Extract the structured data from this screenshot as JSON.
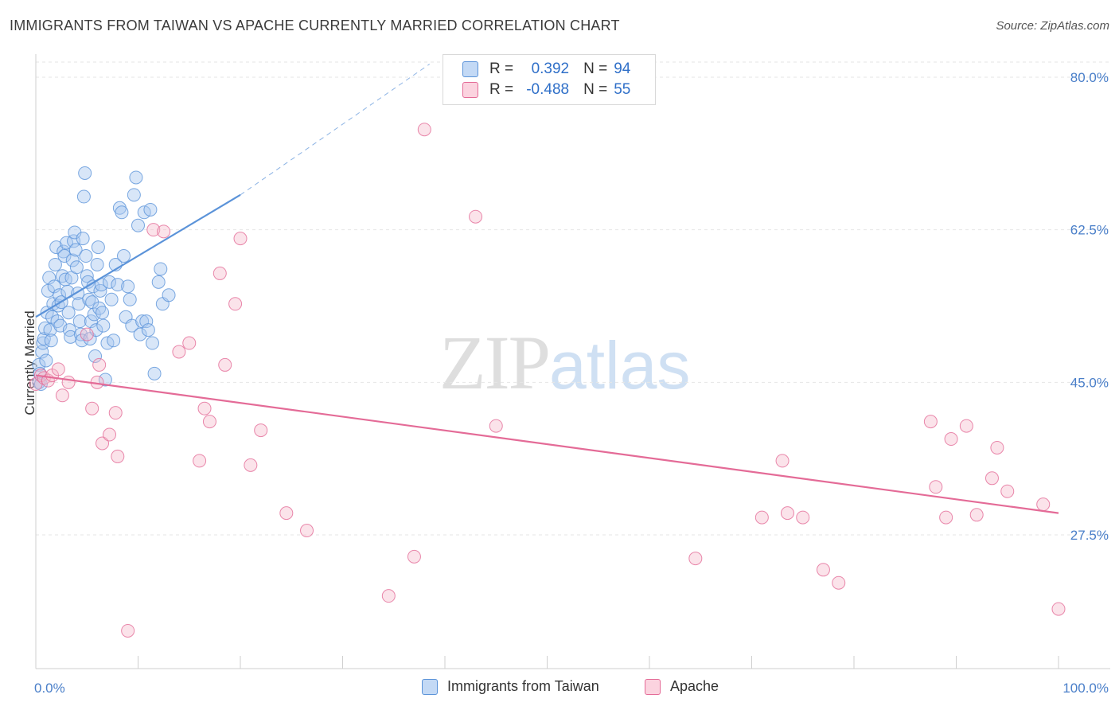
{
  "header": {
    "title": "IMMIGRANTS FROM TAIWAN VS APACHE CURRENTLY MARRIED CORRELATION CHART",
    "source": "Source: ZipAtlas.com"
  },
  "watermark": {
    "zip": "ZIP",
    "atlas": "atlas"
  },
  "legend_top": {
    "rows": [
      {
        "r_label": "R =",
        "r_value": "0.392",
        "n_label": "N =",
        "n_value": "94",
        "color": "#a8c8f0"
      },
      {
        "r_label": "R =",
        "r_value": "-0.488",
        "n_label": "N =",
        "n_value": "55",
        "color": "#f5b8cb"
      }
    ]
  },
  "legend_bottom": {
    "items": [
      {
        "label": "Immigrants from Taiwan",
        "color": "#a8c8f0"
      },
      {
        "label": "Apache",
        "color": "#f5b8cb"
      }
    ]
  },
  "chart_data": {
    "type": "scatter",
    "title": "IMMIGRANTS FROM TAIWAN VS APACHE CURRENTLY MARRIED CORRELATION CHART",
    "xlabel": "",
    "ylabel": "Currently Married",
    "xlim": [
      0,
      100
    ],
    "ylim": [
      10,
      83
    ],
    "y_ticks": [
      {
        "value": 80.0,
        "label": "80.0%"
      },
      {
        "value": 62.5,
        "label": "62.5%"
      },
      {
        "value": 45.0,
        "label": "45.0%"
      },
      {
        "value": 27.5,
        "label": "27.5%"
      }
    ],
    "x_tick_labels": [
      {
        "value": 0,
        "label": "0.0%"
      },
      {
        "value": 100,
        "label": "100.0%"
      }
    ],
    "grid": true,
    "legend_position": "top-center",
    "series": [
      {
        "name": "Immigrants from Taiwan",
        "color": "#5b93d9",
        "fill": "#a8c8f0",
        "R": 0.392,
        "N": 94,
        "trendline": {
          "x": [
            0,
            20
          ],
          "y": [
            52.5,
            66.5
          ],
          "dashed_extension": {
            "x": [
              20,
              38.5
            ],
            "y": [
              66.5,
              81.5
            ]
          }
        },
        "points": [
          [
            0.3,
            47.0
          ],
          [
            0.3,
            45.0
          ],
          [
            0.4,
            46.0
          ],
          [
            0.5,
            44.8
          ],
          [
            0.6,
            48.5
          ],
          [
            0.7,
            49.5
          ],
          [
            0.8,
            50.0
          ],
          [
            0.9,
            51.2
          ],
          [
            1.0,
            47.5
          ],
          [
            1.1,
            53.0
          ],
          [
            1.2,
            55.5
          ],
          [
            1.3,
            57.0
          ],
          [
            1.4,
            51.0
          ],
          [
            1.5,
            49.8
          ],
          [
            1.6,
            52.5
          ],
          [
            1.7,
            54.0
          ],
          [
            1.8,
            56.0
          ],
          [
            1.9,
            58.5
          ],
          [
            2.0,
            60.5
          ],
          [
            2.1,
            52.0
          ],
          [
            2.2,
            53.8
          ],
          [
            2.3,
            55.0
          ],
          [
            2.4,
            51.5
          ],
          [
            2.5,
            54.2
          ],
          [
            2.6,
            57.2
          ],
          [
            2.7,
            60.0
          ],
          [
            2.8,
            59.5
          ],
          [
            2.9,
            56.8
          ],
          [
            3.0,
            61.0
          ],
          [
            3.1,
            55.4
          ],
          [
            3.2,
            53.0
          ],
          [
            3.3,
            51.0
          ],
          [
            3.4,
            50.2
          ],
          [
            3.5,
            57.0
          ],
          [
            3.6,
            59.0
          ],
          [
            3.7,
            61.2
          ],
          [
            3.8,
            62.2
          ],
          [
            3.9,
            60.2
          ],
          [
            4.0,
            58.2
          ],
          [
            4.1,
            55.2
          ],
          [
            4.2,
            54.0
          ],
          [
            4.3,
            52.0
          ],
          [
            4.4,
            50.5
          ],
          [
            4.5,
            49.8
          ],
          [
            4.6,
            61.5
          ],
          [
            4.7,
            66.3
          ],
          [
            4.8,
            69.0
          ],
          [
            4.9,
            59.5
          ],
          [
            5.0,
            57.2
          ],
          [
            5.1,
            56.5
          ],
          [
            5.2,
            54.5
          ],
          [
            5.3,
            50.0
          ],
          [
            5.4,
            52.0
          ],
          [
            5.5,
            54.2
          ],
          [
            5.6,
            56.0
          ],
          [
            5.7,
            52.8
          ],
          [
            5.8,
            48.0
          ],
          [
            5.9,
            51.0
          ],
          [
            6.0,
            58.5
          ],
          [
            6.1,
            60.5
          ],
          [
            6.2,
            53.5
          ],
          [
            6.3,
            55.5
          ],
          [
            6.4,
            56.2
          ],
          [
            6.5,
            53.0
          ],
          [
            6.6,
            51.5
          ],
          [
            6.8,
            45.3
          ],
          [
            7.0,
            49.5
          ],
          [
            7.2,
            56.5
          ],
          [
            7.4,
            54.5
          ],
          [
            7.6,
            49.8
          ],
          [
            7.8,
            58.5
          ],
          [
            8.0,
            56.2
          ],
          [
            8.2,
            65.0
          ],
          [
            8.4,
            64.5
          ],
          [
            8.6,
            59.5
          ],
          [
            8.8,
            52.5
          ],
          [
            9.0,
            56.0
          ],
          [
            9.2,
            54.5
          ],
          [
            9.4,
            51.5
          ],
          [
            9.6,
            66.5
          ],
          [
            9.8,
            68.5
          ],
          [
            10.0,
            63.0
          ],
          [
            10.2,
            50.5
          ],
          [
            10.4,
            52.0
          ],
          [
            10.6,
            64.5
          ],
          [
            10.8,
            52.0
          ],
          [
            11.0,
            51.0
          ],
          [
            11.2,
            64.8
          ],
          [
            11.4,
            49.5
          ],
          [
            11.6,
            46.0
          ],
          [
            12.0,
            56.5
          ],
          [
            12.2,
            58.0
          ],
          [
            12.4,
            54.0
          ],
          [
            13.0,
            55.0
          ]
        ]
      },
      {
        "name": "Apache",
        "color": "#e46b97",
        "fill": "#f5b8cb",
        "R": -0.488,
        "N": 55,
        "trendline": {
          "x": [
            0,
            100
          ],
          "y": [
            45.8,
            30.0
          ]
        },
        "points": [
          [
            0.0,
            44.8
          ],
          [
            0.5,
            45.8
          ],
          [
            0.8,
            45.5
          ],
          [
            1.2,
            45.2
          ],
          [
            1.6,
            45.8
          ],
          [
            2.2,
            46.5
          ],
          [
            2.6,
            43.5
          ],
          [
            3.2,
            45.0
          ],
          [
            5.0,
            50.5
          ],
          [
            5.5,
            42.0
          ],
          [
            6.0,
            45.0
          ],
          [
            6.2,
            47.0
          ],
          [
            6.5,
            38.0
          ],
          [
            7.2,
            39.0
          ],
          [
            7.8,
            41.5
          ],
          [
            8.0,
            36.5
          ],
          [
            9.0,
            16.5
          ],
          [
            11.5,
            62.5
          ],
          [
            12.5,
            62.3
          ],
          [
            14.0,
            48.5
          ],
          [
            15.0,
            49.5
          ],
          [
            16.0,
            36.0
          ],
          [
            16.5,
            42.0
          ],
          [
            17.0,
            40.5
          ],
          [
            18.0,
            57.5
          ],
          [
            18.5,
            47.0
          ],
          [
            19.5,
            54.0
          ],
          [
            20.0,
            61.5
          ],
          [
            21.0,
            35.5
          ],
          [
            22.0,
            39.5
          ],
          [
            24.5,
            30.0
          ],
          [
            26.5,
            28.0
          ],
          [
            34.5,
            20.5
          ],
          [
            37.0,
            25.0
          ],
          [
            38.0,
            74.0
          ],
          [
            43.0,
            64.0
          ],
          [
            45.0,
            40.0
          ],
          [
            64.5,
            24.8
          ],
          [
            71.0,
            29.5
          ],
          [
            73.0,
            36.0
          ],
          [
            73.5,
            30.0
          ],
          [
            75.0,
            29.5
          ],
          [
            77.0,
            23.5
          ],
          [
            78.5,
            22.0
          ],
          [
            87.5,
            40.5
          ],
          [
            88.0,
            33.0
          ],
          [
            89.0,
            29.5
          ],
          [
            89.5,
            38.5
          ],
          [
            91.0,
            40.0
          ],
          [
            92.0,
            29.8
          ],
          [
            93.5,
            34.0
          ],
          [
            94.0,
            37.5
          ],
          [
            95.0,
            32.5
          ],
          [
            98.5,
            31.0
          ],
          [
            100.0,
            19.0
          ]
        ]
      }
    ]
  }
}
